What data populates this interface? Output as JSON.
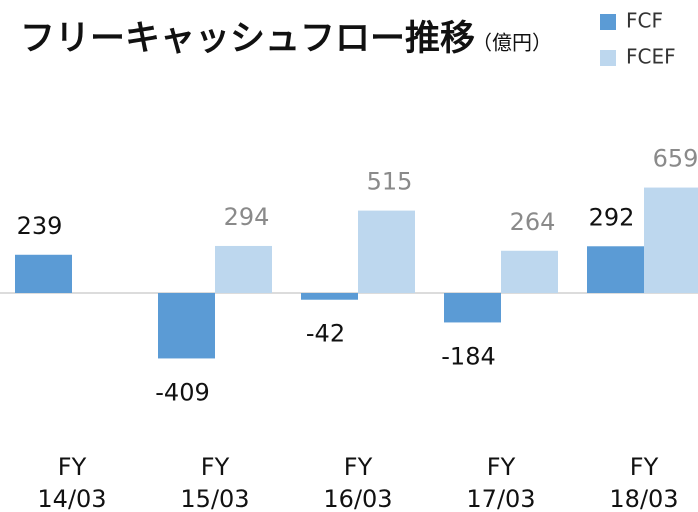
{
  "chart_data": {
    "type": "bar",
    "title": "フリーキャッシュフロー推移",
    "subtitle": "（億円）",
    "categories": [
      "FY\n14/03",
      "FY\n15/03",
      "FY\n16/03",
      "FY\n17/03",
      "FY\n18/03"
    ],
    "series": [
      {
        "name": "FCF",
        "color": "#5b9bd5",
        "values": [
          239,
          -409,
          -42,
          -184,
          292
        ]
      },
      {
        "name": "FCEF",
        "color": "#bdd7ee",
        "values": [
          null,
          294,
          515,
          264,
          659
        ]
      }
    ]
  }
}
